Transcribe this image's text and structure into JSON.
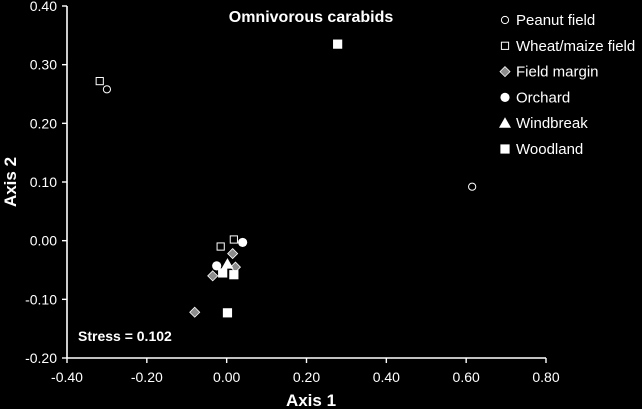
{
  "chart_data": {
    "type": "scatter",
    "title": "Omnivorous carabids",
    "xlabel": "Axis 1",
    "ylabel": "Axis 2",
    "xlim": [
      -0.4,
      0.8
    ],
    "ylim": [
      -0.2,
      0.4
    ],
    "x_ticks": [
      "-0.40",
      "-0.20",
      "0.00",
      "0.20",
      "0.40",
      "0.60",
      "0.80"
    ],
    "y_ticks": [
      "-0.20",
      "-0.10",
      "0.00",
      "0.10",
      "0.20",
      "0.30",
      "0.40"
    ],
    "annotation": "Stress = 0.102",
    "legend_position": "top-right",
    "grid": false,
    "colors": {
      "background": "#000000",
      "foreground": "#ffffff",
      "margin_fill": "#8c8c8c"
    },
    "series": [
      {
        "name": "Peanut field",
        "marker": "circle-open",
        "points": [
          [
            -0.3,
            0.258
          ],
          [
            0.615,
            0.092
          ]
        ]
      },
      {
        "name": "Wheat/maize field",
        "marker": "square-open",
        "points": [
          [
            -0.318,
            0.272
          ],
          [
            -0.015,
            -0.01
          ],
          [
            0.018,
            0.002
          ]
        ]
      },
      {
        "name": "Field margin",
        "marker": "diamond-gray",
        "points": [
          [
            -0.08,
            -0.122
          ],
          [
            -0.035,
            -0.06
          ],
          [
            0.015,
            -0.022
          ],
          [
            0.022,
            -0.045
          ]
        ]
      },
      {
        "name": "Orchard",
        "marker": "circle-filled",
        "points": [
          [
            0.04,
            -0.003
          ],
          [
            -0.025,
            -0.043
          ]
        ]
      },
      {
        "name": "Windbreak",
        "marker": "triangle-filled",
        "points": [
          [
            0.002,
            -0.04
          ]
        ]
      },
      {
        "name": "Woodland",
        "marker": "square-filled",
        "points": [
          [
            0.278,
            0.335
          ],
          [
            0.002,
            -0.123
          ],
          [
            -0.01,
            -0.055
          ],
          [
            0.018,
            -0.058
          ]
        ]
      }
    ]
  }
}
